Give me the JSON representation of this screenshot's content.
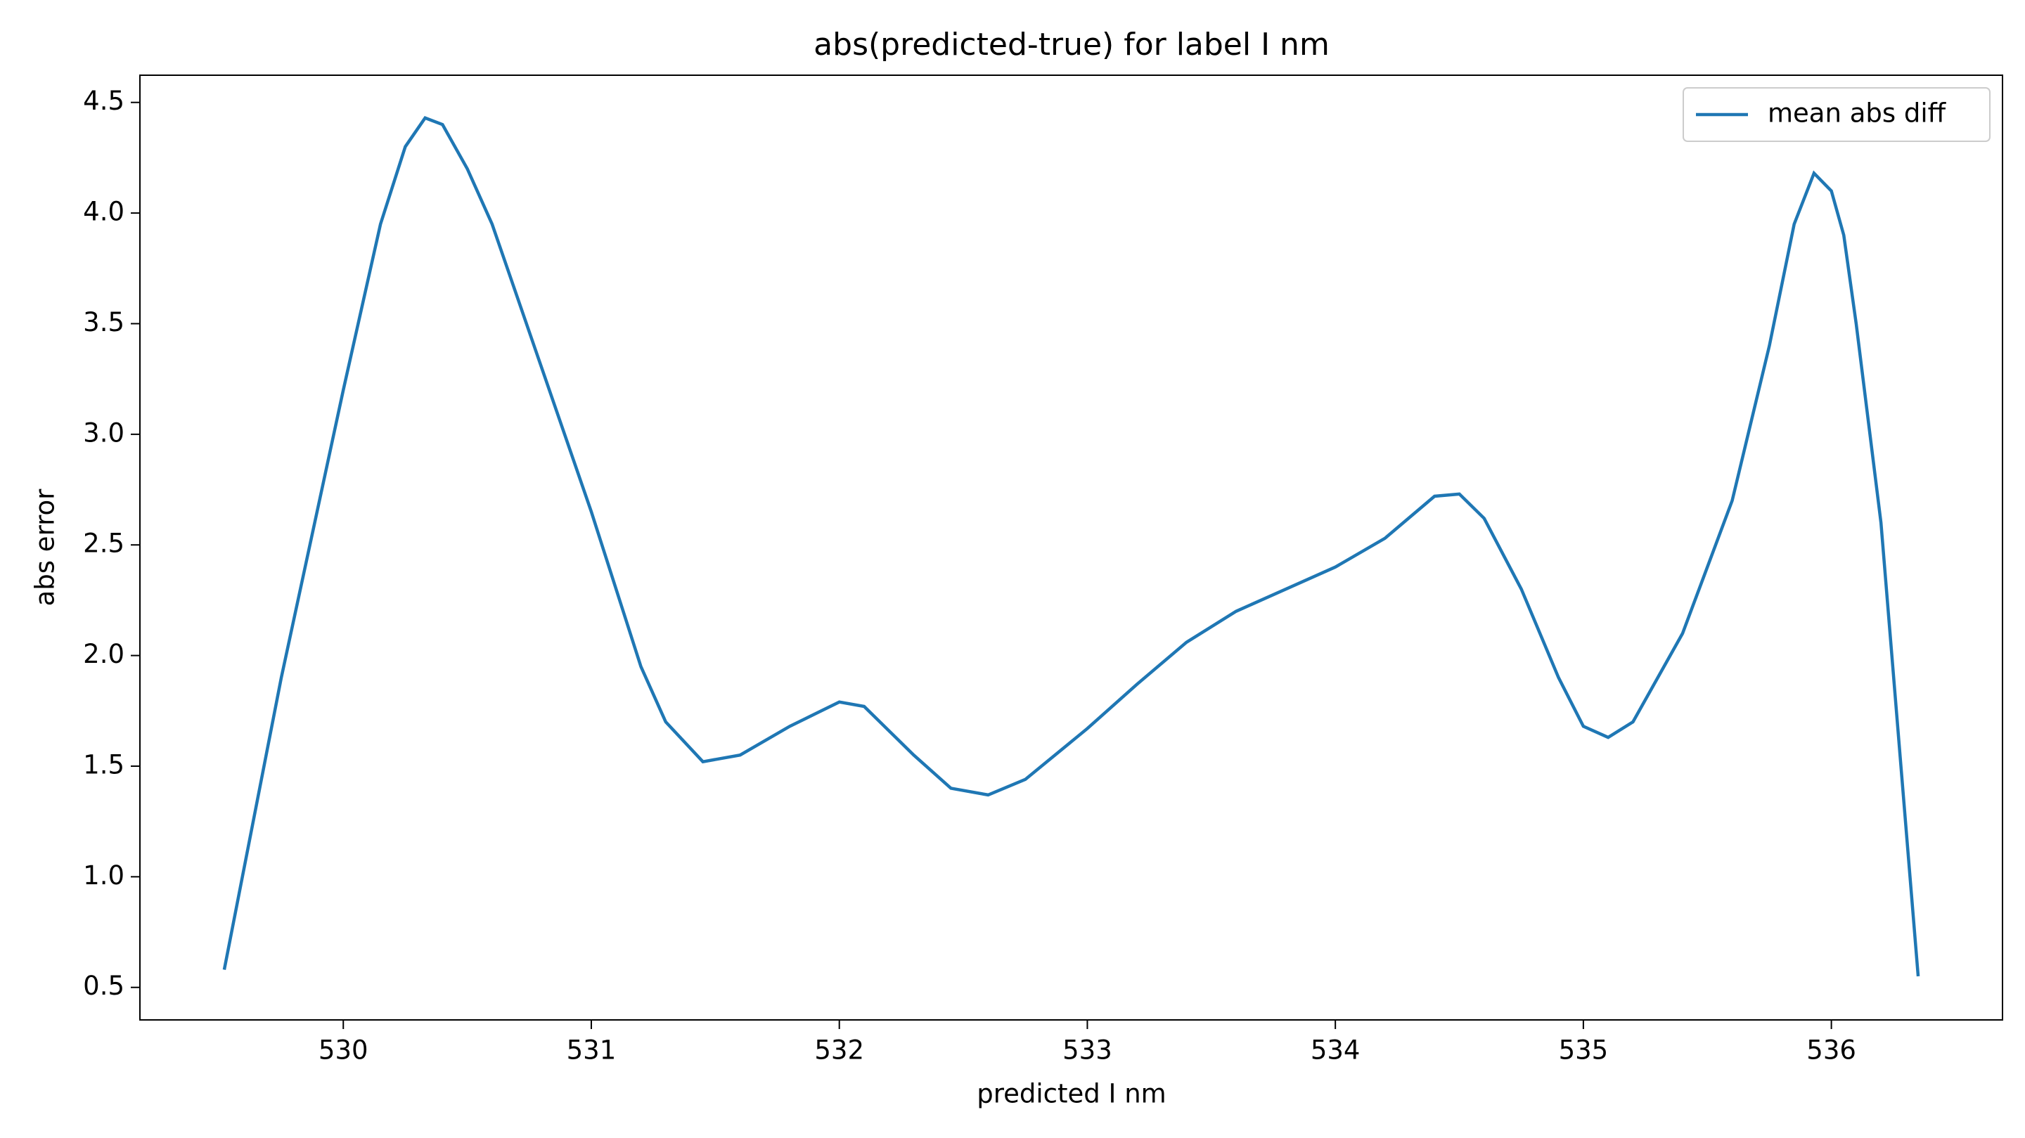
{
  "chart_data": {
    "type": "line",
    "title": "abs(predicted-true) for label I nm",
    "xlabel": "predicted I nm",
    "ylabel": "abs error",
    "x": [
      529.52,
      529.75,
      530.0,
      530.15,
      530.25,
      530.33,
      530.4,
      530.5,
      530.6,
      530.8,
      531.0,
      531.2,
      531.3,
      531.45,
      531.6,
      531.8,
      532.0,
      532.1,
      532.3,
      532.45,
      532.6,
      532.75,
      533.0,
      533.2,
      533.4,
      533.6,
      533.8,
      534.0,
      534.2,
      534.4,
      534.5,
      534.6,
      534.75,
      534.9,
      535.0,
      535.1,
      535.2,
      535.4,
      535.6,
      535.75,
      535.85,
      535.93,
      536.0,
      536.05,
      536.1,
      536.2,
      536.35
    ],
    "series": [
      {
        "name": "mean abs diff",
        "color": "#1f77b4",
        "values": [
          0.58,
          1.9,
          3.2,
          3.95,
          4.3,
          4.43,
          4.4,
          4.2,
          3.95,
          3.3,
          2.65,
          1.95,
          1.7,
          1.52,
          1.55,
          1.68,
          1.79,
          1.77,
          1.55,
          1.4,
          1.37,
          1.44,
          1.67,
          1.87,
          2.06,
          2.2,
          2.3,
          2.4,
          2.53,
          2.72,
          2.73,
          2.62,
          2.3,
          1.9,
          1.68,
          1.63,
          1.7,
          2.1,
          2.7,
          3.4,
          3.95,
          4.18,
          4.1,
          3.9,
          3.5,
          2.6,
          0.55
        ]
      }
    ],
    "xlim": [
      529.18,
      536.69
    ],
    "xticks": [
      530,
      531,
      532,
      533,
      534,
      535,
      536
    ],
    "ylim": [
      0.353,
      4.623
    ],
    "yticks": [
      0.5,
      {
        "value": 1,
        "label": "1.0"
      },
      1.5,
      {
        "value": 2,
        "label": "2.0"
      },
      2.5,
      {
        "value": 3,
        "label": "3.0"
      },
      3.5,
      {
        "value": 4,
        "label": "4.0"
      },
      4.5
    ],
    "legend": "upper right"
  }
}
